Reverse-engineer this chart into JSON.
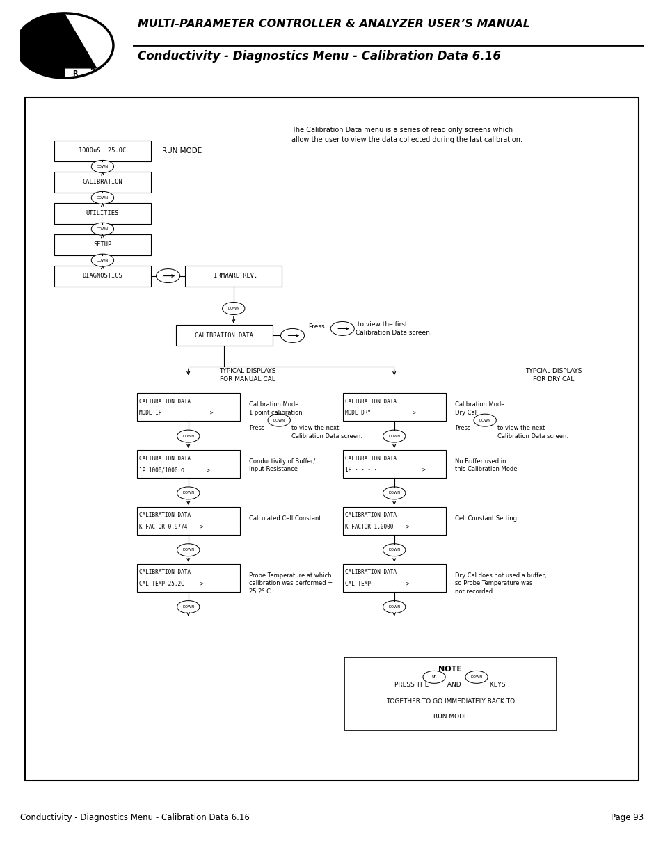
{
  "title_line1": "MULTI-PARAMETER CONTROLLER & ANALYZER USER’S MANUAL",
  "title_line2": "Conductivity - Diagnostics Menu - Calibration Data 6.16",
  "footer_left": "Conductivity - Diagnostics Menu - Calibration Data 6.16",
  "footer_right": "Page 93",
  "bg_color": "#ffffff"
}
